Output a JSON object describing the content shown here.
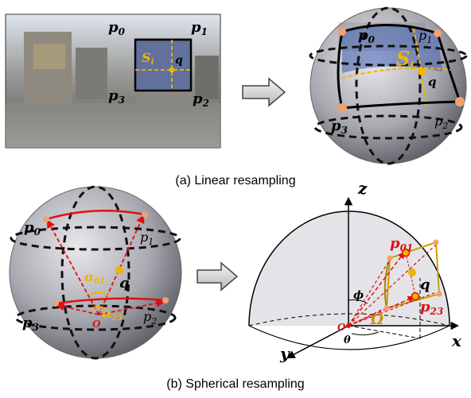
{
  "captions": {
    "top": "(a) Linear resampling",
    "bottom": "(b) Spherical resampling"
  },
  "panel_a": {
    "labels": {
      "p0": "p",
      "p0_sub": "0",
      "p1": "p",
      "p1_sub": "1",
      "p2": "p",
      "p2_sub": "2",
      "p3": "p",
      "p3_sub": "3",
      "s": "S",
      "s_sub": "i",
      "q": "q"
    },
    "sphere_labels": {
      "p0": "p",
      "p0_sub": "0",
      "p1": "p",
      "p1_sub": "1",
      "p2": "p",
      "p2_sub": "2",
      "p3": "p",
      "p3_sub": "3",
      "s": "S",
      "s_sub": "i",
      "q": "q"
    }
  },
  "panel_b": {
    "labels": {
      "p0": "p",
      "p0_sub": "0",
      "p1": "p",
      "p1_sub": "1",
      "p2": "p",
      "p2_sub": "2",
      "p3": "p",
      "p3_sub": "3",
      "q": "q",
      "o": "O",
      "a01": "α",
      "a01_sub": "01",
      "a23": "α",
      "a23_sub": "23"
    },
    "axes": {
      "z": "z",
      "x": "x",
      "y": "y",
      "o": "O",
      "phi": "ϕ",
      "theta": "θ",
      "omega": "Ω",
      "p01": "p",
      "p01_sub": "01",
      "p23": "p",
      "p23_sub": "23",
      "q": "q"
    }
  },
  "colors": {
    "accent_yellow": "#f0b400",
    "accent_red": "#e01010",
    "patch_blue": "#3f5fb0"
  }
}
